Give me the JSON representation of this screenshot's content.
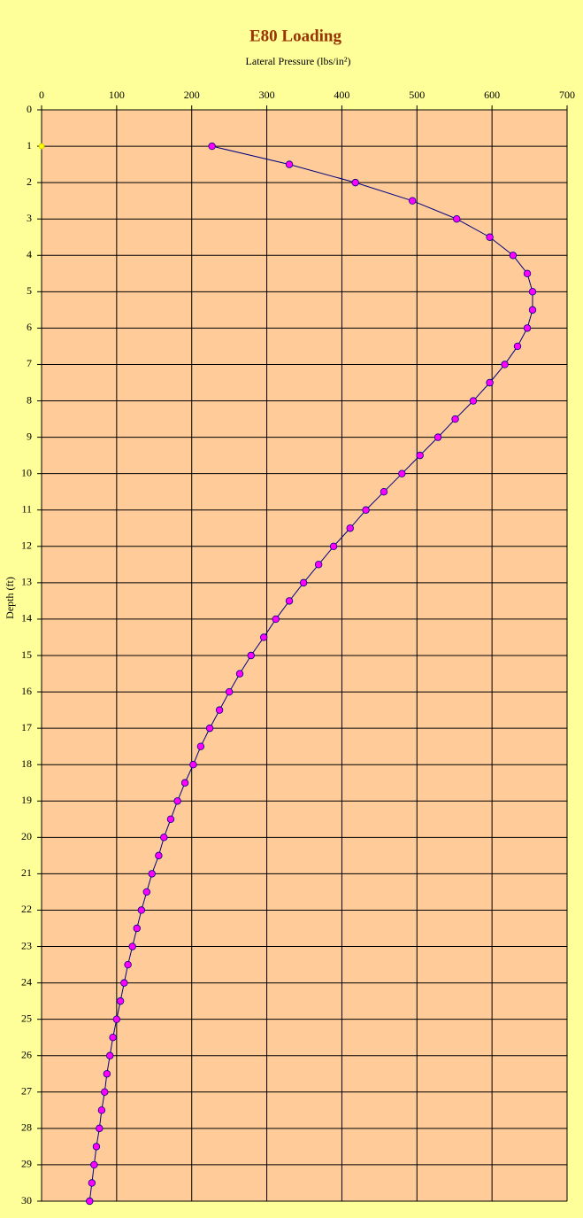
{
  "chart_data": {
    "type": "scatter",
    "title": "E80 Loading",
    "x_label": "Lateral Pressure (lbs/in²)",
    "y_label": "Depth (ft)",
    "xlim": [
      0,
      700
    ],
    "xticks": [
      0,
      100,
      200,
      300,
      400,
      500,
      600,
      700
    ],
    "ylim": [
      0,
      30
    ],
    "yticks": [
      0,
      1,
      2,
      3,
      4,
      5,
      6,
      7,
      8,
      9,
      10,
      11,
      12,
      13,
      14,
      15,
      16,
      17,
      18,
      19,
      20,
      21,
      22,
      23,
      24,
      25,
      26,
      27,
      28,
      29,
      30
    ],
    "y_inverted": true,
    "x_axis_position": "top",
    "grid": true,
    "plot_background": "#ffcc99",
    "series": [
      {
        "color": "#ff00ff",
        "line_color": "#000080",
        "line": true,
        "x": [
          227,
          330,
          418,
          494,
          553,
          597,
          628,
          647,
          654,
          654,
          647,
          634,
          617,
          597,
          575,
          551,
          528,
          504,
          480,
          456,
          432,
          411,
          389,
          369,
          349,
          330,
          312,
          296,
          279,
          264,
          250,
          237,
          224,
          212,
          202,
          191,
          181,
          172,
          163,
          156,
          147,
          140,
          133,
          127,
          121,
          115,
          110,
          105,
          100,
          95,
          91,
          87,
          84,
          80,
          77,
          73,
          70,
          67,
          64
        ],
        "values": [
          1,
          1.5,
          2,
          2.5,
          3,
          3.5,
          4,
          4.5,
          5,
          5.5,
          6,
          6.5,
          7,
          7.5,
          8,
          8.5,
          9,
          9.5,
          10,
          10.5,
          11,
          11.5,
          12,
          12.5,
          13,
          13.5,
          14,
          14.5,
          15,
          15.5,
          16,
          16.5,
          17,
          17.5,
          18,
          18.5,
          19,
          19.5,
          20,
          20.5,
          21,
          21.5,
          22,
          22.5,
          23,
          23.5,
          24,
          24.5,
          25,
          25.5,
          26,
          26.5,
          27,
          27.5,
          28,
          28.5,
          29,
          29.5,
          30
        ]
      },
      {
        "color": "#ffff00",
        "line": false,
        "x": [
          0
        ],
        "values": [
          1
        ]
      }
    ]
  }
}
